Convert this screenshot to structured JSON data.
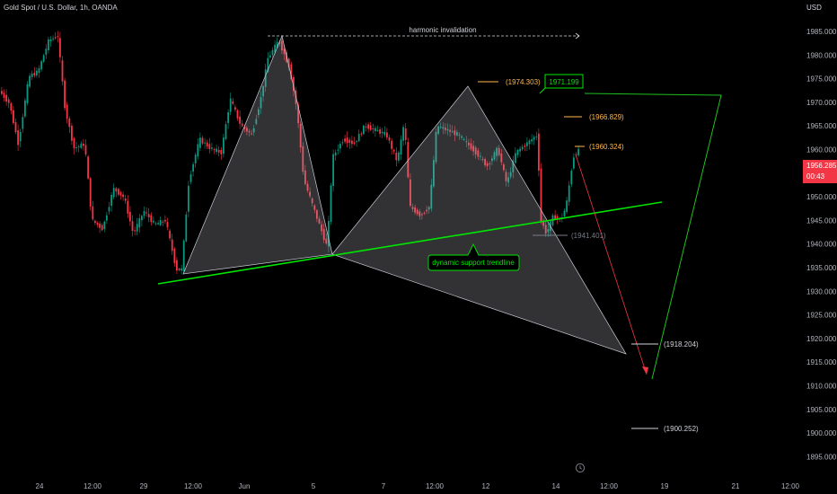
{
  "header": {
    "title": "Gold Spot / U.S. Dollar, 1h, OANDA",
    "currency": "USD"
  },
  "price_axis": {
    "ticks": [
      "1985.000",
      "1980.000",
      "1975.000",
      "1970.000",
      "1965.000",
      "1960.000",
      "1955.000",
      "1950.000",
      "1945.000",
      "1940.000",
      "1935.000",
      "1930.000",
      "1925.000",
      "1920.000",
      "1915.000",
      "1910.000",
      "1905.000",
      "1900.000",
      "1895.000"
    ],
    "current_price": "1956.285",
    "countdown": "00:43",
    "current_color": "#f23645"
  },
  "time_axis": {
    "ticks": [
      "24",
      "12:00",
      "29",
      "12:00",
      "Jun",
      "5",
      "7",
      "12:00",
      "12",
      "14",
      "12:00",
      "19",
      "21",
      "12:00"
    ]
  },
  "annotations": {
    "harmonic_invalidation": "harmonic invalidation",
    "support_label": "dynamic support trendline",
    "level_1974": "(1974.303)",
    "level_1971": "1971.199",
    "level_1966": "(1966.829)",
    "level_1960": "(1960.324)",
    "level_1941": "(1941.401)",
    "level_1918": "(1918.204)",
    "level_1900": "(1900.252)"
  },
  "colors": {
    "bull": "#089981",
    "bear": "#f23645",
    "trendline": "#00e600",
    "orange": "#ffb74d",
    "pattern_fill": "#b2b5be"
  }
}
